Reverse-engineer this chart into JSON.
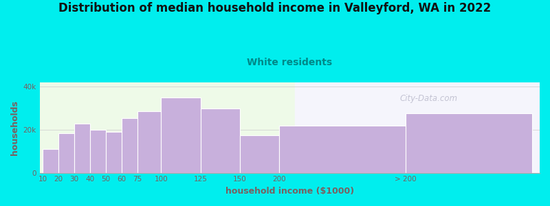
{
  "title": "Distribution of median household income in Valleyford, WA in 2022",
  "subtitle": "White residents",
  "xlabel": "household income ($1000)",
  "ylabel": "households",
  "background_color": "#00EEEE",
  "bar_color": "#c8b0dc",
  "bar_edge_color": "#ffffff",
  "categories": [
    "10",
    "20",
    "30",
    "40",
    "50",
    "60",
    "75",
    "100",
    "125",
    "150",
    "200",
    "> 200"
  ],
  "values": [
    11000,
    18500,
    23000,
    20000,
    19000,
    25500,
    28500,
    35000,
    30000,
    17500,
    22000,
    27500
  ],
  "bar_lefts": [
    0,
    10,
    20,
    30,
    40,
    50,
    60,
    75,
    100,
    125,
    150,
    230
  ],
  "bar_widths": [
    10,
    10,
    10,
    10,
    10,
    10,
    15,
    25,
    25,
    25,
    80,
    80
  ],
  "xlim": [
    -2,
    315
  ],
  "ylim": [
    0,
    42000
  ],
  "yticks": [
    0,
    20000,
    40000
  ],
  "title_fontsize": 12,
  "subtitle_fontsize": 10,
  "subtitle_color": "#008888",
  "axis_label_color": "#7a6060",
  "tick_color": "#7a6060",
  "watermark": "City-Data.com",
  "plot_bg_color": "#f5fff0",
  "plot_bg_right": "#f8f8ff"
}
